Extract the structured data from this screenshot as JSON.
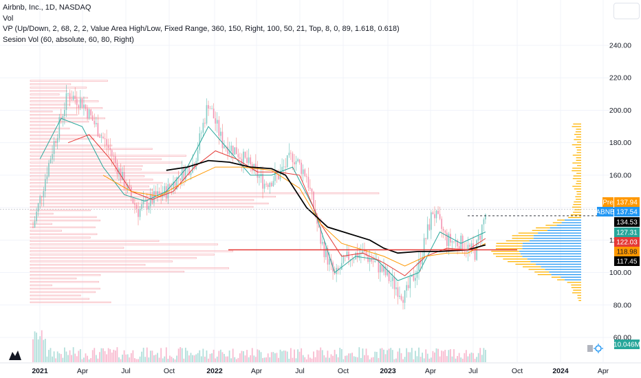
{
  "header": {
    "title": "Airbnb, Inc., 1D, NASDAQ",
    "indicators": [
      "Vol",
      "VP (Up/Down, 2, 68, 2, 2, Value Area High/Low, Fixed Range, 360, 150, Right, 100, 50, 21, Top, 8, 0, 89, 1.618, 0.618)",
      "Sesion Vol (60, absolute, 60, 80, Right)"
    ]
  },
  "colors": {
    "candle_up": "#26a69a",
    "candle_down": "#ef5350",
    "sma_short": "#26a69a",
    "sma_mid": "#e53935",
    "sma_long": "#ff9800",
    "sma_200": "#000000",
    "vp_left": "#f8bbc1",
    "vp_right_up": "#2196f3",
    "vp_right_down": "#ffb300",
    "poc": "#e53935"
  },
  "chart_data": {
    "type": "candlestick",
    "symbol": "ABNB",
    "y_axis": {
      "ticks": [
        "240.00",
        "220.00",
        "200.00",
        "180.00",
        "160.00",
        "140.00",
        "120.00",
        "100.00",
        "80.00",
        "60.00"
      ],
      "range": [
        50,
        255
      ]
    },
    "x_axis": {
      "ticks": [
        "2021",
        "Apr",
        "Jul",
        "Oct",
        "2022",
        "Apr",
        "Jul",
        "Oct",
        "2023",
        "Apr",
        "Jul",
        "Oct",
        "2024",
        "Apr"
      ]
    },
    "price_path": [
      [
        0,
        128
      ],
      [
        6,
        180
      ],
      [
        10,
        210
      ],
      [
        14,
        205
      ],
      [
        18,
        190
      ],
      [
        22,
        175
      ],
      [
        26,
        155
      ],
      [
        30,
        138
      ],
      [
        34,
        145
      ],
      [
        38,
        150
      ],
      [
        42,
        160
      ],
      [
        46,
        168
      ],
      [
        50,
        205
      ],
      [
        54,
        180
      ],
      [
        58,
        175
      ],
      [
        62,
        165
      ],
      [
        66,
        155
      ],
      [
        70,
        160
      ],
      [
        74,
        172
      ],
      [
        78,
        160
      ],
      [
        82,
        120
      ],
      [
        86,
        97
      ],
      [
        90,
        110
      ],
      [
        94,
        112
      ],
      [
        98,
        105
      ],
      [
        102,
        95
      ],
      [
        106,
        85
      ],
      [
        110,
        105
      ],
      [
        114,
        138
      ],
      [
        118,
        120
      ],
      [
        122,
        118
      ],
      [
        126,
        112
      ],
      [
        129,
        136
      ]
    ],
    "moving_averages": {
      "sma_short": [
        [
          2,
          170
        ],
        [
          8,
          195
        ],
        [
          14,
          190
        ],
        [
          20,
          165
        ],
        [
          26,
          148
        ],
        [
          32,
          144
        ],
        [
          38,
          150
        ],
        [
          44,
          165
        ],
        [
          50,
          190
        ],
        [
          56,
          175
        ],
        [
          62,
          160
        ],
        [
          68,
          160
        ],
        [
          74,
          165
        ],
        [
          80,
          140
        ],
        [
          86,
          100
        ],
        [
          92,
          110
        ],
        [
          98,
          108
        ],
        [
          104,
          95
        ],
        [
          110,
          100
        ],
        [
          116,
          125
        ],
        [
          122,
          118
        ],
        [
          129,
          125
        ]
      ],
      "sma_mid": [
        [
          10,
          180
        ],
        [
          16,
          185
        ],
        [
          22,
          170
        ],
        [
          28,
          150
        ],
        [
          34,
          145
        ],
        [
          40,
          150
        ],
        [
          46,
          165
        ],
        [
          52,
          175
        ],
        [
          58,
          170
        ],
        [
          64,
          162
        ],
        [
          70,
          162
        ],
        [
          76,
          160
        ],
        [
          82,
          130
        ],
        [
          88,
          110
        ],
        [
          94,
          112
        ],
        [
          100,
          106
        ],
        [
          106,
          98
        ],
        [
          112,
          110
        ],
        [
          118,
          115
        ],
        [
          124,
          114
        ],
        [
          129,
          121
        ]
      ],
      "sma_long": [
        [
          20,
          160
        ],
        [
          28,
          150
        ],
        [
          36,
          147
        ],
        [
          44,
          157
        ],
        [
          52,
          165
        ],
        [
          60,
          165
        ],
        [
          68,
          163
        ],
        [
          76,
          152
        ],
        [
          82,
          130
        ],
        [
          88,
          118
        ],
        [
          94,
          114
        ],
        [
          100,
          110
        ],
        [
          106,
          104
        ],
        [
          112,
          110
        ],
        [
          118,
          112
        ],
        [
          124,
          112
        ],
        [
          129,
          118
        ]
      ],
      "sma_200": [
        [
          38,
          163
        ],
        [
          44,
          165
        ],
        [
          50,
          169
        ],
        [
          56,
          168
        ],
        [
          62,
          165
        ],
        [
          68,
          164
        ],
        [
          72,
          160
        ],
        [
          78,
          140
        ],
        [
          84,
          128
        ],
        [
          90,
          124
        ],
        [
          96,
          120
        ],
        [
          100,
          115
        ],
        [
          104,
          112
        ],
        [
          110,
          113
        ],
        [
          116,
          113
        ],
        [
          124,
          114
        ],
        [
          129,
          117
        ]
      ]
    },
    "dashed_line_level": 135,
    "poc_level": 114,
    "value_area": [
      95,
      133
    ],
    "price_labels": [
      {
        "label": "Pre",
        "value": "137.94",
        "bg": "#ff9800",
        "fg": "#ffffff"
      },
      {
        "label": "ABNB",
        "value": "137.54",
        "bg": "#2196f3",
        "fg": "#ffffff"
      },
      {
        "label": "",
        "value": "134.53",
        "bg": "#000000",
        "fg": "#ffffff"
      },
      {
        "label": "",
        "value": "127.31",
        "bg": "#26a69a",
        "fg": "#ffffff"
      },
      {
        "label": "",
        "value": "122.03",
        "bg": "#e53935",
        "fg": "#ffffff"
      },
      {
        "label": "",
        "value": "118.98",
        "bg": "#ff9800",
        "fg": "#131722"
      },
      {
        "label": "",
        "value": "117.45",
        "bg": "#000000",
        "fg": "#ffffff"
      },
      {
        "label": "",
        "value": "10.046M",
        "bg": "#26a69a",
        "fg": "#ffffff"
      }
    ]
  }
}
